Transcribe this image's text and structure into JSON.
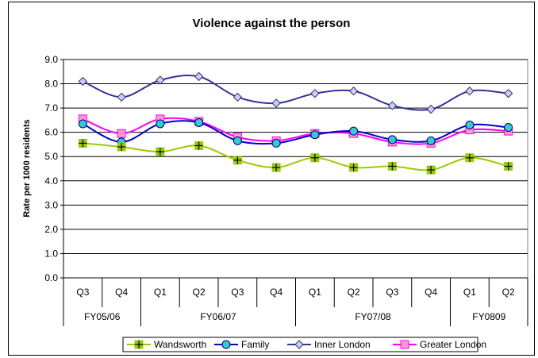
{
  "chart_data": {
    "type": "line",
    "title": "Violence against the person",
    "ylabel": "Rate per 1000 residents",
    "xlabel": "",
    "ylim": [
      0,
      9
    ],
    "yticks": [
      "0.0",
      "1.0",
      "2.0",
      "3.0",
      "4.0",
      "5.0",
      "6.0",
      "7.0",
      "8.0",
      "9.0"
    ],
    "grid": true,
    "legend_position": "bottom",
    "categories": [
      "Q3",
      "Q4",
      "Q1",
      "Q2",
      "Q3",
      "Q4",
      "Q1",
      "Q2",
      "Q3",
      "Q4",
      "Q1",
      "Q2"
    ],
    "groups": [
      {
        "label": "FY05/06",
        "span": 2
      },
      {
        "label": "FY06/07",
        "span": 4
      },
      {
        "label": "FY07/08",
        "span": 4
      },
      {
        "label": "FY0809",
        "span": 2
      }
    ],
    "series": [
      {
        "name": "Wandsworth",
        "color": "#99cc00",
        "marker": "square-plus",
        "values": [
          5.55,
          5.4,
          5.2,
          5.45,
          4.85,
          4.55,
          4.95,
          4.55,
          4.6,
          4.45,
          4.95,
          4.6
        ]
      },
      {
        "name": "Family",
        "color": "#0000cc",
        "marker": "circle",
        "values": [
          6.35,
          5.6,
          6.35,
          6.4,
          5.65,
          5.55,
          5.9,
          6.05,
          5.7,
          5.65,
          6.3,
          6.2
        ]
      },
      {
        "name": "Inner London",
        "color": "#333399",
        "marker": "diamond",
        "values": [
          8.1,
          7.45,
          8.15,
          8.3,
          7.45,
          7.2,
          7.6,
          7.7,
          7.1,
          6.95,
          7.7,
          7.6
        ]
      },
      {
        "name": "Greater London",
        "color": "#ff00ff",
        "marker": "square",
        "values": [
          6.55,
          5.95,
          6.55,
          6.45,
          5.8,
          5.65,
          5.95,
          5.95,
          5.6,
          5.55,
          6.1,
          6.05
        ]
      }
    ]
  }
}
